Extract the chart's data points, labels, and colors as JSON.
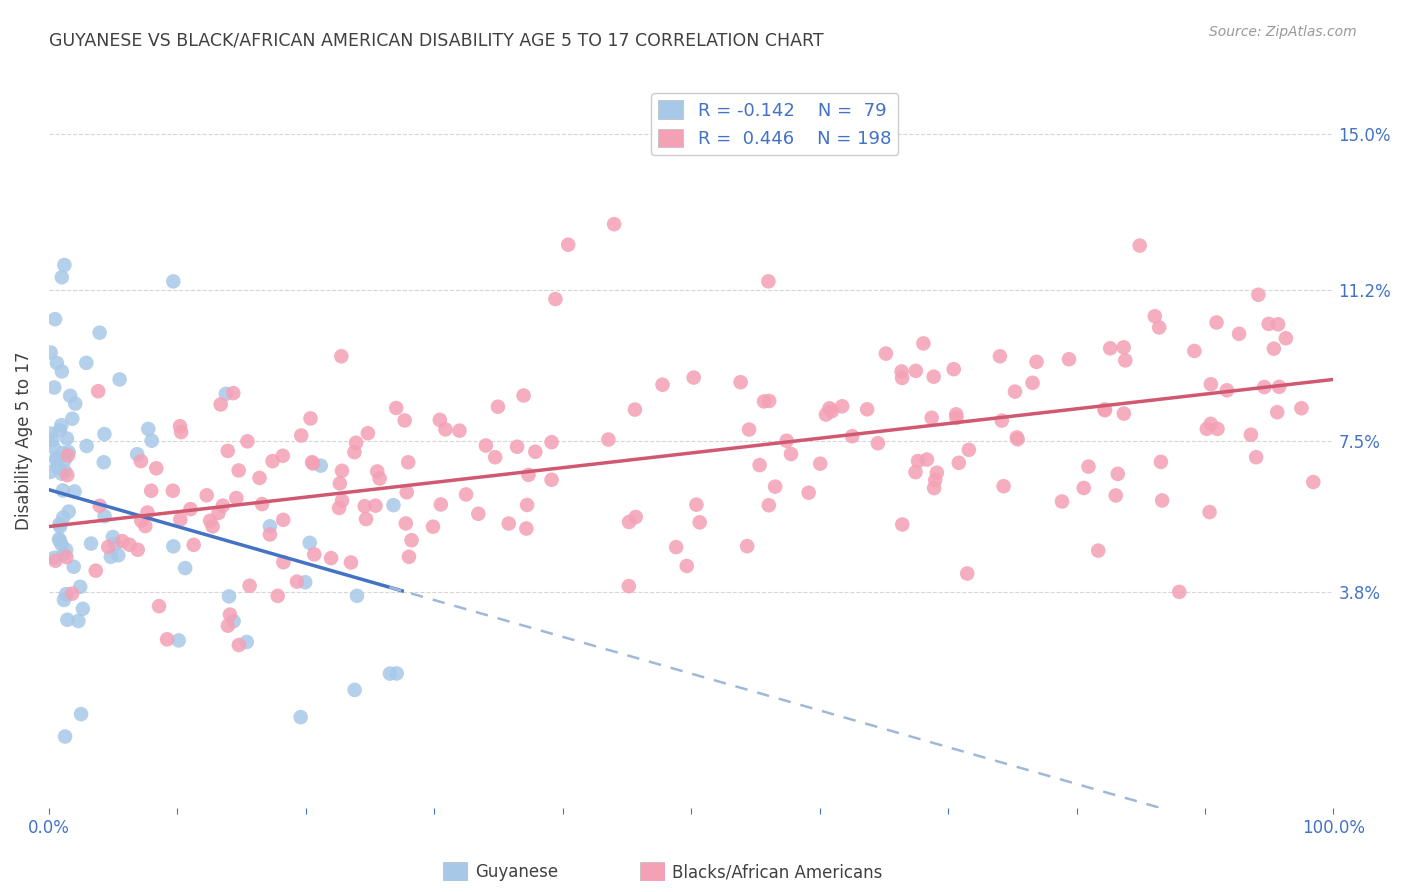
{
  "title": "GUYANESE VS BLACK/AFRICAN AMERICAN DISABILITY AGE 5 TO 17 CORRELATION CHART",
  "source": "Source: ZipAtlas.com",
  "ylabel": "Disability Age 5 to 17",
  "yticks": [
    "3.8%",
    "7.5%",
    "11.2%",
    "15.0%"
  ],
  "ytick_vals": [
    0.038,
    0.075,
    0.112,
    0.15
  ],
  "xlim": [
    0.0,
    1.0
  ],
  "ylim": [
    -0.015,
    0.165
  ],
  "color_guyanese": "#a8c8e8",
  "color_baa": "#f4a0b5",
  "color_trend_guyanese": "#4472c4",
  "color_trend_baa": "#d05870",
  "color_trend_guyanese_dash": "#a0b8d8",
  "background_color": "#ffffff",
  "grid_color": "#cccccc"
}
